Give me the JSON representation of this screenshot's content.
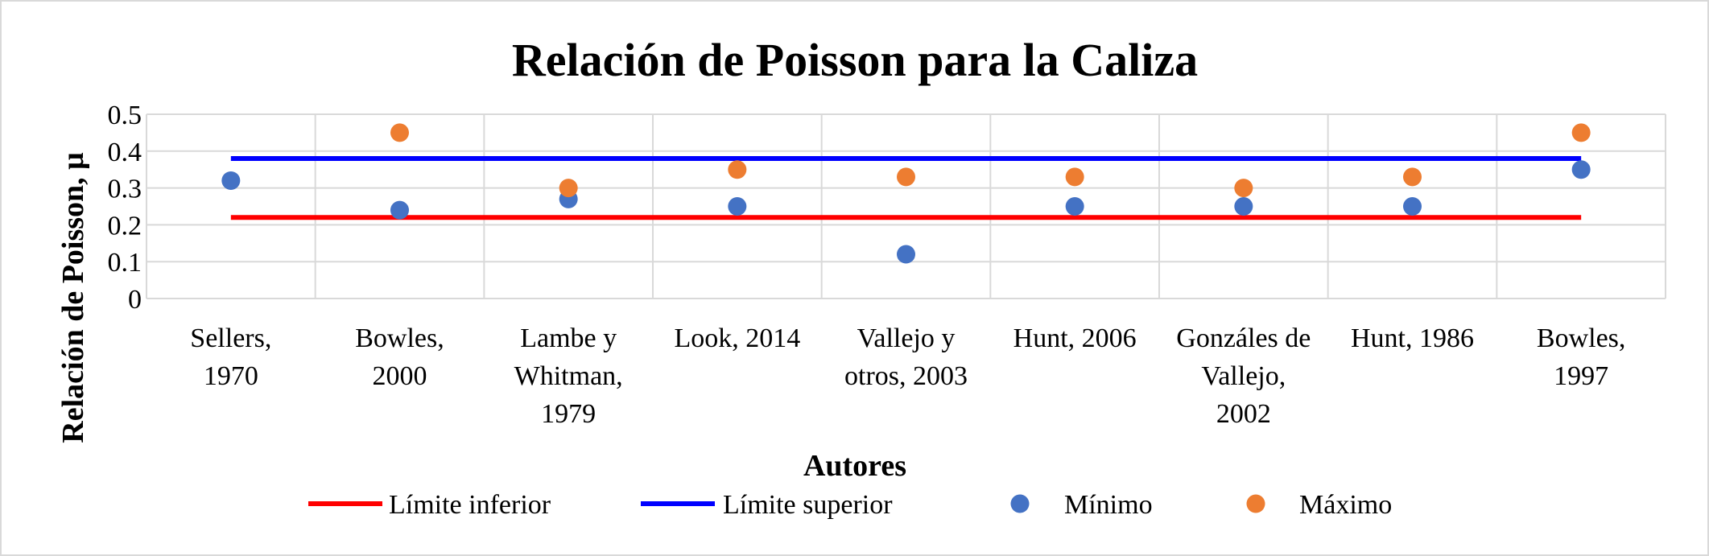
{
  "chart_data": {
    "type": "scatter",
    "title": "Relación de Poisson para la Caliza",
    "xlabel": "Autores",
    "ylabel": "Relación de Poisson, μ",
    "categories": [
      [
        "Sellers,",
        "1970"
      ],
      [
        "Bowles,",
        "2000"
      ],
      [
        "Lambe y",
        "Whitman,",
        "1979"
      ],
      [
        "Look, 2014"
      ],
      [
        "Vallejo y",
        "otros, 2003"
      ],
      [
        "Hunt, 2006"
      ],
      [
        "Gonzáles de",
        "Vallejo,",
        "2002"
      ],
      [
        "Hunt, 1986"
      ],
      [
        "Bowles,",
        "1997"
      ]
    ],
    "y_ticks": [
      "0",
      "0.1",
      "0.2",
      "0.3",
      "0.4",
      "0.5"
    ],
    "ylim": [
      0,
      0.5
    ],
    "grid": true,
    "legend_position": "bottom",
    "series": [
      {
        "name": "Límite  inferior",
        "kind": "line",
        "color": "#ff0000",
        "values": [
          0.22,
          0.22,
          0.22,
          0.22,
          0.22,
          0.22,
          0.22,
          0.22,
          0.22
        ]
      },
      {
        "name": "Límite  superior",
        "kind": "line",
        "color": "#0000ff",
        "values": [
          0.38,
          0.38,
          0.38,
          0.38,
          0.38,
          0.38,
          0.38,
          0.38,
          0.38
        ]
      },
      {
        "name": "Mínimo",
        "kind": "marker",
        "color": "#4472c4",
        "values": [
          0.32,
          0.24,
          0.27,
          0.25,
          0.12,
          0.25,
          0.25,
          0.25,
          0.35
        ]
      },
      {
        "name": "Máximo",
        "kind": "marker",
        "color": "#ed7d31",
        "values": [
          null,
          0.45,
          0.3,
          0.35,
          0.33,
          0.33,
          0.3,
          0.33,
          0.45
        ]
      }
    ]
  }
}
